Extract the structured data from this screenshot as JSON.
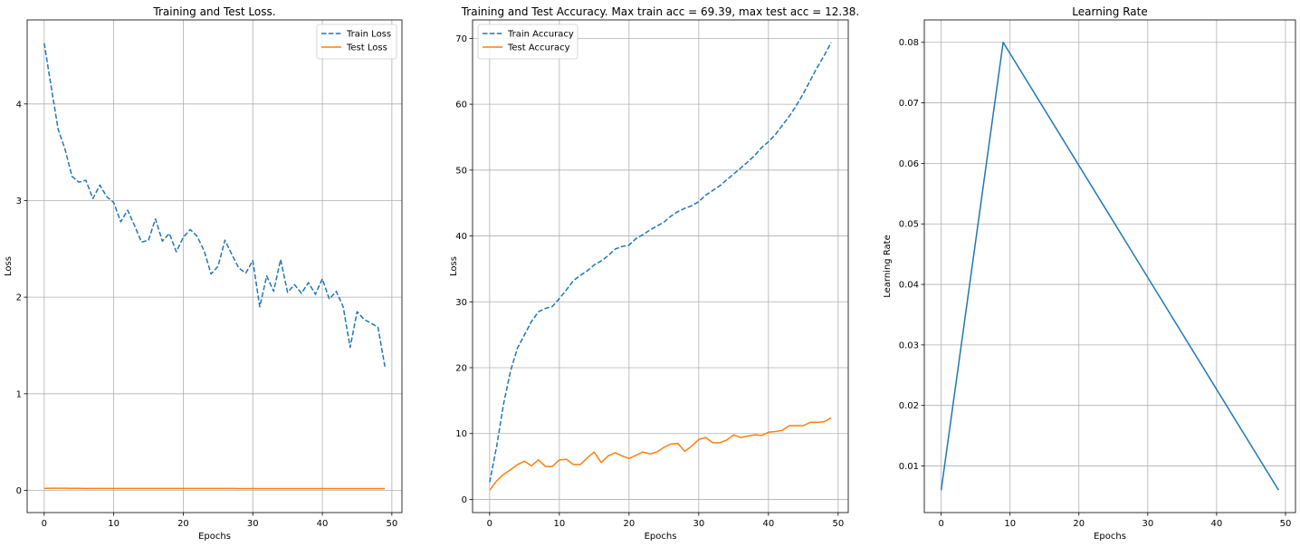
{
  "chart_data": [
    {
      "type": "line",
      "title": "Training and Test Loss.",
      "xlabel": "Epochs",
      "ylabel": "Loss",
      "xlim": [
        -2.45,
        51.45
      ],
      "ylim": [
        -0.23,
        4.87
      ],
      "xticks": [
        0,
        10,
        20,
        30,
        40,
        50
      ],
      "xtick_labels": [
        "0",
        "10",
        "20",
        "30",
        "40",
        "50"
      ],
      "yticks": [
        0,
        1,
        2,
        3,
        4
      ],
      "ytick_labels": [
        "0",
        "1",
        "2",
        "3",
        "4"
      ],
      "grid": true,
      "legend": "top-right",
      "series": [
        {
          "name": "Train Loss",
          "color": "#1f77b4",
          "dashed": true,
          "x": [
            0,
            1,
            2,
            3,
            4,
            5,
            6,
            7,
            8,
            9,
            10,
            11,
            12,
            13,
            14,
            15,
            16,
            17,
            18,
            19,
            20,
            21,
            22,
            23,
            24,
            25,
            26,
            27,
            28,
            29,
            30,
            31,
            32,
            33,
            34,
            35,
            36,
            37,
            38,
            39,
            40,
            41,
            42,
            43,
            44,
            45,
            46,
            47,
            48,
            49
          ],
          "values": [
            4.63,
            4.18,
            3.74,
            3.53,
            3.25,
            3.19,
            3.21,
            3.02,
            3.16,
            3.04,
            2.98,
            2.78,
            2.9,
            2.74,
            2.57,
            2.59,
            2.81,
            2.58,
            2.66,
            2.47,
            2.62,
            2.7,
            2.63,
            2.48,
            2.24,
            2.32,
            2.59,
            2.44,
            2.3,
            2.25,
            2.38,
            1.9,
            2.22,
            2.06,
            2.39,
            2.05,
            2.13,
            2.04,
            2.15,
            2.03,
            2.19,
            1.98,
            2.06,
            1.9,
            1.48,
            1.85,
            1.77,
            1.73,
            1.69,
            1.28
          ]
        },
        {
          "name": "Test Loss",
          "color": "#ff7f0e",
          "dashed": false,
          "x": [
            0,
            1,
            2,
            3,
            4,
            5,
            6,
            7,
            8,
            9,
            10,
            11,
            12,
            13,
            14,
            15,
            16,
            17,
            18,
            19,
            20,
            21,
            22,
            23,
            24,
            25,
            26,
            27,
            28,
            29,
            30,
            31,
            32,
            33,
            34,
            35,
            36,
            37,
            38,
            39,
            40,
            41,
            42,
            43,
            44,
            45,
            46,
            47,
            48,
            49
          ],
          "values": [
            0.02,
            0.022,
            0.022,
            0.022,
            0.021,
            0.021,
            0.02,
            0.02,
            0.02,
            0.02,
            0.02,
            0.02,
            0.02,
            0.02,
            0.02,
            0.02,
            0.02,
            0.02,
            0.02,
            0.02,
            0.02,
            0.02,
            0.02,
            0.02,
            0.02,
            0.02,
            0.02,
            0.02,
            0.019,
            0.019,
            0.019,
            0.019,
            0.019,
            0.019,
            0.019,
            0.019,
            0.019,
            0.019,
            0.019,
            0.019,
            0.019,
            0.019,
            0.019,
            0.019,
            0.019,
            0.019,
            0.019,
            0.019,
            0.019,
            0.019
          ]
        }
      ]
    },
    {
      "type": "line",
      "title": "Training and Test Accuracy. Max train acc = 69.39, max test acc = 12.38.",
      "xlabel": "Epochs",
      "ylabel": "Loss",
      "xlim": [
        -2.45,
        51.45
      ],
      "ylim": [
        -2.0,
        72.8
      ],
      "xticks": [
        0,
        10,
        20,
        30,
        40,
        50
      ],
      "xtick_labels": [
        "0",
        "10",
        "20",
        "30",
        "40",
        "50"
      ],
      "yticks": [
        0,
        10,
        20,
        30,
        40,
        50,
        60,
        70
      ],
      "ytick_labels": [
        "0",
        "10",
        "20",
        "30",
        "40",
        "50",
        "60",
        "70"
      ],
      "grid": true,
      "legend": "top-left",
      "series": [
        {
          "name": "Train Accuracy",
          "color": "#1f77b4",
          "dashed": true,
          "x": [
            0,
            1,
            2,
            3,
            4,
            5,
            6,
            7,
            8,
            9,
            10,
            11,
            12,
            13,
            14,
            15,
            16,
            17,
            18,
            19,
            20,
            21,
            22,
            23,
            24,
            25,
            26,
            27,
            28,
            29,
            30,
            31,
            32,
            33,
            34,
            35,
            36,
            37,
            38,
            39,
            40,
            41,
            42,
            43,
            44,
            45,
            46,
            47,
            48,
            49
          ],
          "values": [
            2.6,
            8.0,
            14.5,
            19.5,
            23.0,
            25.0,
            27.0,
            28.5,
            29.0,
            29.3,
            30.5,
            31.8,
            33.2,
            34.0,
            34.7,
            35.6,
            36.2,
            37.0,
            38.0,
            38.4,
            38.6,
            39.6,
            40.2,
            40.9,
            41.5,
            42.1,
            43.0,
            43.7,
            44.2,
            44.6,
            45.2,
            46.2,
            46.9,
            47.6,
            48.5,
            49.4,
            50.3,
            51.2,
            52.2,
            53.4,
            54.3,
            55.4,
            56.8,
            58.2,
            59.8,
            61.6,
            63.6,
            65.6,
            67.4,
            69.39
          ]
        },
        {
          "name": "Test Accuracy",
          "color": "#ff7f0e",
          "dashed": false,
          "x": [
            0,
            1,
            2,
            3,
            4,
            5,
            6,
            7,
            8,
            9,
            10,
            11,
            12,
            13,
            14,
            15,
            16,
            17,
            18,
            19,
            20,
            21,
            22,
            23,
            24,
            25,
            26,
            27,
            28,
            29,
            30,
            31,
            32,
            33,
            34,
            35,
            36,
            37,
            38,
            39,
            40,
            41,
            42,
            43,
            44,
            45,
            46,
            47,
            48,
            49
          ],
          "values": [
            1.4,
            2.8,
            3.8,
            4.5,
            5.3,
            5.8,
            5.1,
            6.0,
            5.0,
            5.0,
            6.0,
            6.1,
            5.3,
            5.3,
            6.3,
            7.2,
            5.6,
            6.6,
            7.1,
            6.6,
            6.2,
            6.7,
            7.2,
            6.9,
            7.2,
            7.9,
            8.4,
            8.5,
            7.3,
            8.1,
            9.1,
            9.4,
            8.6,
            8.6,
            9.0,
            9.8,
            9.4,
            9.6,
            9.8,
            9.7,
            10.2,
            10.3,
            10.5,
            11.2,
            11.2,
            11.2,
            11.7,
            11.7,
            11.8,
            12.38
          ]
        }
      ]
    },
    {
      "type": "line",
      "title": "Learning Rate",
      "xlabel": "Epochs",
      "ylabel": "Learning Rate",
      "xlim": [
        -2.45,
        51.45
      ],
      "ylim": [
        0.0023,
        0.0837
      ],
      "xticks": [
        0,
        10,
        20,
        30,
        40,
        50
      ],
      "xtick_labels": [
        "0",
        "10",
        "20",
        "30",
        "40",
        "50"
      ],
      "yticks": [
        0.01,
        0.02,
        0.03,
        0.04,
        0.05,
        0.06,
        0.07,
        0.08
      ],
      "ytick_labels": [
        "0.01",
        "0.02",
        "0.03",
        "0.04",
        "0.05",
        "0.06",
        "0.07",
        "0.08"
      ],
      "grid": true,
      "series": [
        {
          "color": "#1f77b4",
          "dashed": false,
          "x": [
            0,
            9,
            49
          ],
          "values": [
            0.006,
            0.08,
            0.006
          ]
        }
      ]
    }
  ]
}
